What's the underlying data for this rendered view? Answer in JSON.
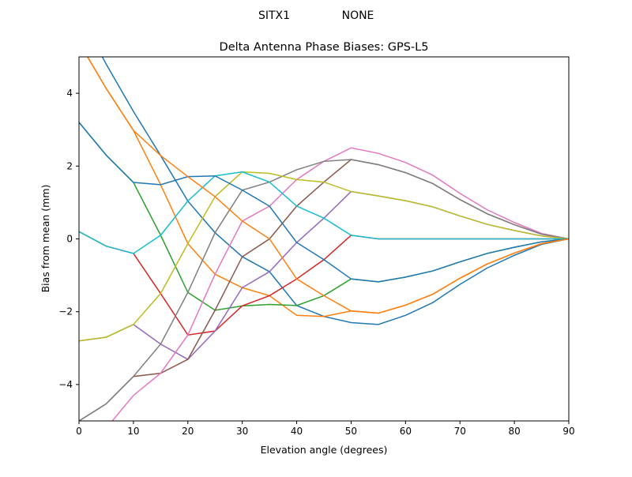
{
  "suptitle": {
    "station": "SITX1",
    "model": "NONE"
  },
  "chart_data": {
    "type": "line",
    "title": "Delta Antenna Phase Biases: GPS-L5",
    "xlabel": "Elevation angle (degrees)",
    "ylabel": "Bias from mean (mm)",
    "xlim": [
      0,
      90
    ],
    "ylim": [
      -5,
      5
    ],
    "xticks": [
      0,
      10,
      20,
      30,
      40,
      50,
      60,
      70,
      80,
      90
    ],
    "yticks": [
      -4,
      -2,
      0,
      2,
      4
    ],
    "grid": false,
    "x": [
      0,
      5,
      10,
      15,
      20,
      25,
      30,
      35,
      40,
      45,
      50,
      55,
      60,
      65,
      70,
      75,
      80,
      85,
      90
    ],
    "colors": [
      "#1f77b4",
      "#ff7f0e",
      "#2ca02c",
      "#d62728",
      "#9467bd",
      "#8c564b",
      "#e377c2",
      "#7f7f7f",
      "#bcbd22",
      "#17becf"
    ],
    "series": [
      {
        "values": [
          6.2,
          4.8,
          3.5,
          2.29,
          1.04,
          0.17,
          -0.49,
          -0.9,
          -1.83,
          -2.13,
          -2.3,
          -2.35,
          -2.1,
          -1.75,
          -1.25,
          -0.8,
          -0.45,
          -0.15,
          0
        ]
      },
      {
        "values": [
          5.4,
          4.13,
          2.98,
          1.49,
          -0.13,
          -0.97,
          -1.34,
          -1.56,
          -2.1,
          -2.13,
          -1.98,
          -2.04,
          -1.82,
          -1.52,
          -1.08,
          -0.69,
          -0.39,
          -0.13,
          0
        ]
      },
      {
        "values": [
          3.2,
          2.3,
          1.55,
          0.1,
          -1.47,
          -1.96,
          -1.84,
          -1.8,
          -1.83,
          -1.56,
          -1.1,
          -1.18,
          -1.05,
          -0.88,
          -0.63,
          -0.4,
          -0.23,
          -0.08,
          0
        ]
      },
      {
        "values": [
          0.2,
          -0.2,
          -0.4,
          -1.5,
          -2.64,
          -2.53,
          -1.84,
          -1.56,
          -1.1,
          -0.57,
          0.1,
          0,
          0,
          0,
          0,
          0,
          0,
          0,
          0
        ]
      },
      {
        "values": [
          -2.8,
          -2.7,
          -2.35,
          -2.89,
          -3.31,
          -2.53,
          -1.34,
          -0.9,
          -0.1,
          0.57,
          1.3,
          1.18,
          1.05,
          0.88,
          0.63,
          0.4,
          0.23,
          0.08,
          0
        ]
      },
      {
        "values": [
          -5,
          -4.53,
          -3.78,
          -3.69,
          -3.31,
          -1.96,
          -0.49,
          0,
          0.9,
          1.56,
          2.18,
          2.04,
          1.82,
          1.52,
          1.08,
          0.69,
          0.39,
          0.13,
          0
        ]
      },
      {
        "values": [
          -5.8,
          -5.2,
          -4.3,
          -3.69,
          -2.64,
          -0.97,
          0.49,
          0.9,
          1.63,
          2.13,
          2.5,
          2.35,
          2.1,
          1.75,
          1.25,
          0.8,
          0.45,
          0.15,
          0
        ]
      },
      {
        "values": [
          -5,
          -4.53,
          -3.78,
          -2.89,
          -1.47,
          0.17,
          1.34,
          1.56,
          1.9,
          2.13,
          2.18,
          2.04,
          1.82,
          1.52,
          1.08,
          0.69,
          0.39,
          0.13,
          0
        ]
      },
      {
        "values": [
          -2.8,
          -2.7,
          -2.35,
          -1.5,
          -0.13,
          1.16,
          1.84,
          1.8,
          1.63,
          1.56,
          1.3,
          1.18,
          1.05,
          0.88,
          0.63,
          0.4,
          0.23,
          0.08,
          0
        ]
      },
      {
        "values": [
          0.2,
          -0.2,
          -0.4,
          0.1,
          1.04,
          1.73,
          1.84,
          1.56,
          0.9,
          0.57,
          0.1,
          0,
          0,
          0,
          0,
          0,
          0,
          0,
          0
        ]
      },
      {
        "values": [
          3.2,
          2.3,
          1.55,
          1.49,
          1.71,
          1.73,
          1.34,
          0.9,
          -0.1,
          -0.57,
          -1.1,
          -1.18,
          -1.05,
          -0.88,
          -0.63,
          -0.4,
          -0.23,
          -0.08,
          0
        ]
      },
      {
        "values": [
          5.4,
          4.13,
          2.98,
          2.29,
          1.71,
          1.16,
          0.49,
          0,
          -1.1,
          -1.56,
          -1.98,
          -2.04,
          -1.82,
          -1.52,
          -1.08,
          -0.69,
          -0.39,
          -0.13,
          0
        ]
      }
    ]
  }
}
